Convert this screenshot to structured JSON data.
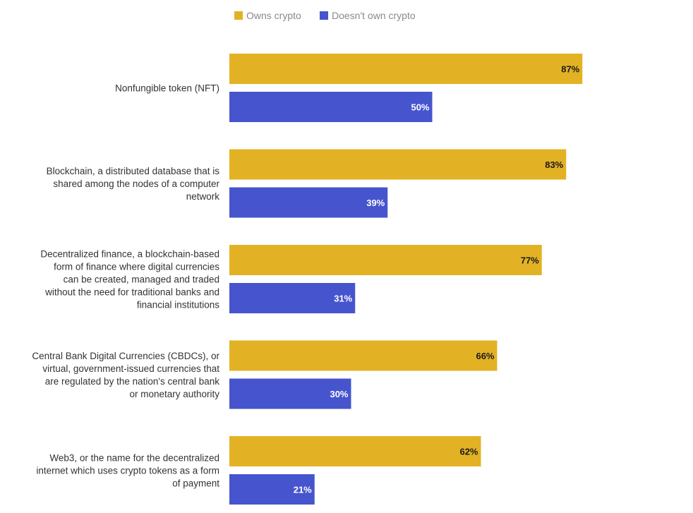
{
  "colors": {
    "owns": "#E3B224",
    "doesnt_own": "#4655CD",
    "label_on_owns": "#1a1a1a",
    "label_on_doesnt_own": "#ffffff"
  },
  "legend": {
    "owns_label": "Owns crypto",
    "doesnt_own_label": "Doesn't own crypto"
  },
  "chart_data": {
    "type": "bar",
    "orientation": "horizontal",
    "title": "",
    "xlabel": "",
    "ylabel": "",
    "xlim": [
      0,
      100
    ],
    "grid": false,
    "legend_position": "top-center",
    "categories": [
      {
        "lines": [
          "Nonfungible token (NFT)"
        ]
      },
      {
        "lines": [
          "Blockchain, a distributed database that is",
          "shared among the nodes of a computer",
          "network"
        ]
      },
      {
        "lines": [
          "Decentralized finance, a blockchain-based",
          "form of finance where digital currencies",
          "can be created, managed and traded",
          "without the need for traditional banks and",
          "financial institutions"
        ]
      },
      {
        "lines": [
          "Central Bank Digital Currencies (CBDCs), or",
          "virtual, government-issued currencies that",
          "are regulated by the nation's central bank",
          "or monetary authority"
        ]
      },
      {
        "lines": [
          "Web3, or the name for the decentralized",
          "internet which uses crypto tokens as a form",
          "of payment"
        ]
      }
    ],
    "series": [
      {
        "name": "Owns crypto",
        "values": [
          87,
          83,
          77,
          66,
          62
        ],
        "labels": [
          "87%",
          "83%",
          "77%",
          "66%",
          "62%"
        ]
      },
      {
        "name": "Doesn't own crypto",
        "values": [
          50,
          39,
          31,
          30,
          21
        ],
        "labels": [
          "50%",
          "39%",
          "31%",
          "30%",
          "21%"
        ]
      }
    ]
  }
}
